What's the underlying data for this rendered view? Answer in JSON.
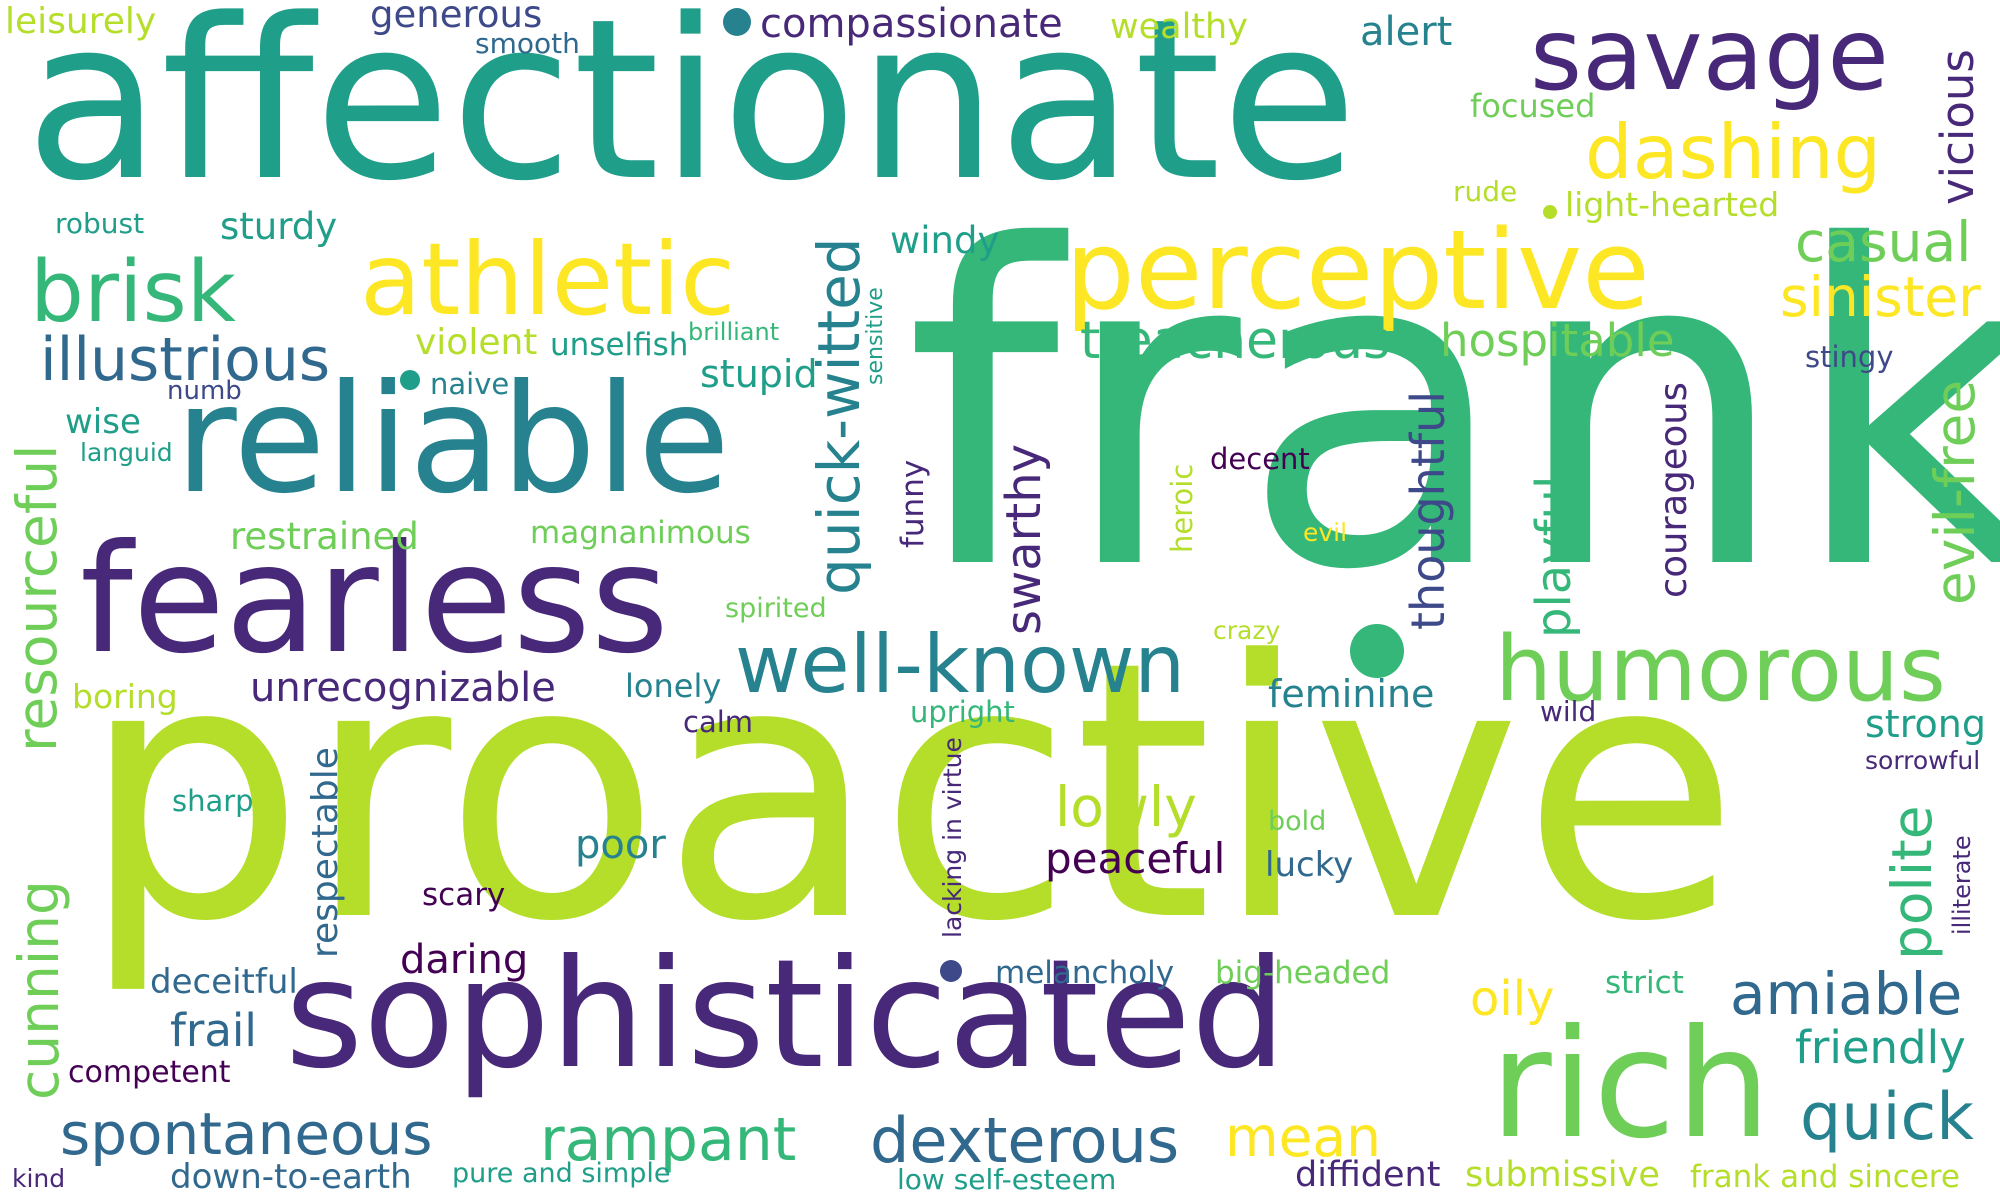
{
  "palette": {
    "v0": "#440154",
    "v1": "#482878",
    "v2": "#3e4989",
    "v3": "#31688e",
    "v4": "#26828e",
    "v5": "#1f9e89",
    "v6": "#35b779",
    "v7": "#6ece58",
    "v8": "#b5de2b",
    "v9": "#fde725"
  },
  "words": {
    "frank": "frank",
    "proactive": "proactive",
    "affectionate": "affectionate",
    "sophisticated": "sophisticated",
    "rich": "rich",
    "fearless": "fearless",
    "reliable": "reliable",
    "perceptive": "perceptive",
    "athletic": "athletic",
    "savage": "savage",
    "humorous": "humorous",
    "well_known": "well-known",
    "quick_witted": "quick-witted",
    "brisk": "brisk",
    "dashing": "dashing",
    "illustrious": "illustrious",
    "spontaneous": "spontaneous",
    "dexterous": "dexterous",
    "rampant": "rampant",
    "treacherous": "treacherous",
    "casual": "casual",
    "sinister": "sinister",
    "evil_free": "evil-free",
    "resourceful": "resourceful",
    "amiable": "amiable",
    "quick": "quick",
    "polite": "polite",
    "mean": "mean",
    "lowly": "lowly",
    "cunning": "cunning",
    "playful": "playful",
    "swarthy": "swarthy",
    "thoughtful": "thoughtful",
    "unrecognizable": "unrecognizable",
    "hospitable": "hospitable",
    "vicious": "vicious",
    "oily": "oily",
    "courageous": "courageous",
    "peaceful": "peaceful",
    "poor": "poor",
    "friendly": "friendly",
    "feminine": "feminine",
    "strong": "strong",
    "frail": "frail",
    "stupid": "stupid",
    "sturdy": "sturdy",
    "compassionate": "compassionate",
    "alert": "alert",
    "generous": "generous",
    "wealthy": "wealthy",
    "leisurely": "leisurely",
    "windy": "windy",
    "violent": "violent",
    "unselfish": "unselfish",
    "restrained": "restrained",
    "magnanimous": "magnanimous",
    "daring": "daring",
    "respectable": "respectable",
    "deceitful": "deceitful",
    "submissive": "submissive",
    "diffident": "diffident",
    "frank_and_sincere": "frank and sincere",
    "down_to_earth": "down-to-earth",
    "melancholy": "melancholy",
    "big_headed": "big-headed",
    "lonely": "lonely",
    "light_hearted": "light-hearted",
    "focused": "focused",
    "boring": "boring",
    "lucky": "lucky",
    "upright": "upright",
    "wise": "wise",
    "naive": "naive",
    "strict": "strict",
    "competent": "competent",
    "funny": "funny",
    "heroic": "heroic",
    "decent": "decent",
    "robust": "robust",
    "scary": "scary",
    "sharp": "sharp",
    "calm": "calm",
    "smooth": "smooth",
    "stingy": "stingy",
    "spirited": "spirited",
    "rude": "rude",
    "brilliant": "brilliant",
    "sensitive": "sensitive",
    "lacking_in_virtue": "lacking in virtue",
    "illiterate": "illiterate",
    "sorrowful": "sorrowful",
    "pure_and_simple": "pure and simple",
    "low_self_esteem": "low self-esteem",
    "numb": "numb",
    "languid": "languid",
    "bold": "bold",
    "crazy": "crazy",
    "wild": "wild",
    "evil": "evil",
    "kind": "kind"
  }
}
